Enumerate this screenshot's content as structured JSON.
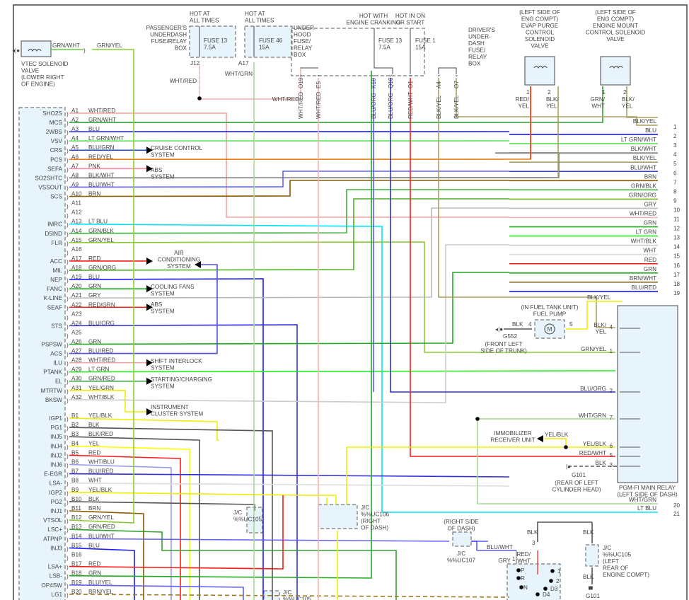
{
  "ecm": {
    "pins_a": [
      {
        "pin": "A1",
        "signal": "SHO2S",
        "wire": "WHT/RED",
        "color": "#f4a0a0"
      },
      {
        "pin": "A2",
        "signal": "MCS",
        "wire": "GRN/WHT",
        "color": "#33a033"
      },
      {
        "pin": "A3",
        "signal": "2WBS",
        "wire": "BLU",
        "color": "#1a1aff"
      },
      {
        "pin": "A4",
        "signal": "VSV",
        "wire": "LT GRN/WHT",
        "color": "#55e055"
      },
      {
        "pin": "A5",
        "signal": "CRS",
        "wire": "BLU/GRN",
        "color": "#2040e0"
      },
      {
        "pin": "A6",
        "signal": "PCS",
        "wire": "RED/YEL",
        "color": "#f07a10"
      },
      {
        "pin": "A7",
        "signal": "SEFA",
        "wire": "PNK",
        "color": "#ff8aa8"
      },
      {
        "pin": "A8",
        "signal": "SO2SHTC",
        "wire": "BLK/WHT",
        "color": "#777777"
      },
      {
        "pin": "A9",
        "signal": "VSSOUT",
        "wire": "BLU/WHT",
        "color": "#6060ff"
      },
      {
        "pin": "A10",
        "signal": "SCS",
        "wire": "BRN",
        "color": "#8a5a00"
      },
      {
        "pin": "A11",
        "signal": "",
        "wire": "",
        "color": ""
      },
      {
        "pin": "A12",
        "signal": "",
        "wire": "",
        "color": ""
      },
      {
        "pin": "A13",
        "signal": "IMRC",
        "wire": "LT BLU",
        "color": "#00e5ff"
      },
      {
        "pin": "A14",
        "signal": "D5IND",
        "wire": "GRN/BLK",
        "color": "#40b040"
      },
      {
        "pin": "A15",
        "signal": "FLR",
        "wire": "GRN/YEL",
        "color": "#88cc33"
      },
      {
        "pin": "A16",
        "signal": "",
        "wire": "",
        "color": ""
      },
      {
        "pin": "A17",
        "signal": "ACC",
        "wire": "RED",
        "color": "#ff1a1a"
      },
      {
        "pin": "A18",
        "signal": "MIL",
        "wire": "GRN/ORG",
        "color": "#4caf20"
      },
      {
        "pin": "A19",
        "signal": "NEP",
        "wire": "BLU",
        "color": "#1a1aff"
      },
      {
        "pin": "A20",
        "signal": "FANC",
        "wire": "GRN",
        "color": "#22aa22"
      },
      {
        "pin": "A21",
        "signal": "K-LINE",
        "wire": "GRY",
        "color": "#bbbbbb"
      },
      {
        "pin": "A22",
        "signal": "SEAF",
        "wire": "RED/GRN",
        "color": "#ff2020"
      },
      {
        "pin": "A23",
        "signal": "",
        "wire": "",
        "color": ""
      },
      {
        "pin": "A24",
        "signal": "STS",
        "wire": "BLU/ORG",
        "color": "#3030e0"
      },
      {
        "pin": "A25",
        "signal": "",
        "wire": "",
        "color": ""
      },
      {
        "pin": "A26",
        "signal": "PSPSW",
        "wire": "GRN",
        "color": "#22aa22"
      },
      {
        "pin": "A27",
        "signal": "ACS",
        "wire": "BLU/RED",
        "color": "#5050e0"
      },
      {
        "pin": "A28",
        "signal": "ILU",
        "wire": "WHT/RED",
        "color": "#f4a0a0"
      },
      {
        "pin": "A29",
        "signal": "PTANK",
        "wire": "LT GRN",
        "color": "#22ee22"
      },
      {
        "pin": "A30",
        "signal": "EL",
        "wire": "GRN/RED",
        "color": "#33a033"
      },
      {
        "pin": "A31",
        "signal": "MTRTW",
        "wire": "YEL/GRN",
        "color": "#eeee00"
      },
      {
        "pin": "A32",
        "signal": "BKSW",
        "wire": "WHT/BLK",
        "color": "#cccccc"
      }
    ],
    "pins_b": [
      {
        "pin": "B1",
        "signal": "IGP1",
        "wire": "YEL/BLK",
        "color": "#f0ee00"
      },
      {
        "pin": "B2",
        "signal": "PG1",
        "wire": "BLK",
        "color": "#555555"
      },
      {
        "pin": "B3",
        "signal": "INJ5",
        "wire": "BLK/RED",
        "color": "#555555"
      },
      {
        "pin": "B4",
        "signal": "INJ4",
        "wire": "YEL",
        "color": "#ffff00"
      },
      {
        "pin": "B5",
        "signal": "INJ2",
        "wire": "RED",
        "color": "#ff1a1a"
      },
      {
        "pin": "B6",
        "signal": "INJ6",
        "wire": "WHT/BLU",
        "color": "#9a9aee"
      },
      {
        "pin": "B7",
        "signal": "E-EGR",
        "wire": "BLU/RED",
        "color": "#3030e0"
      },
      {
        "pin": "B8",
        "signal": "LSA-",
        "wire": "WHT",
        "color": "#dddddd"
      },
      {
        "pin": "B9",
        "signal": "IGP2",
        "wire": "YEL/BLK",
        "color": "#f0ee00"
      },
      {
        "pin": "B10",
        "signal": "PG2",
        "wire": "BLK",
        "color": "#555555"
      },
      {
        "pin": "B11",
        "signal": "INJ1",
        "wire": "BRN",
        "color": "#8a5a00"
      },
      {
        "pin": "B12",
        "signal": "VTSOL",
        "wire": "GRN/YEL",
        "color": "#88cc33"
      },
      {
        "pin": "B13",
        "signal": "LSC+",
        "wire": "GRN/RED",
        "color": "#33a033"
      },
      {
        "pin": "B14",
        "signal": "ATPNP",
        "wire": "BLU/WHT",
        "color": "#6060ff"
      },
      {
        "pin": "B15",
        "signal": "INJ3",
        "wire": "BLU",
        "color": "#1a1aff"
      },
      {
        "pin": "B16",
        "signal": "",
        "wire": "",
        "color": ""
      },
      {
        "pin": "B17",
        "signal": "LSA+",
        "wire": "RED",
        "color": "#ff1a1a"
      },
      {
        "pin": "B18",
        "signal": "LSB-",
        "wire": "GRN",
        "color": "#22aa22"
      },
      {
        "pin": "B19",
        "signal": "OP4SW",
        "wire": "BLU/YEL",
        "color": "#6060ff"
      },
      {
        "pin": "B20",
        "signal": "LG1",
        "wire": "BRN/YEL",
        "color": "#a07a20"
      }
    ]
  },
  "system_arrows": [
    "CRUISE CONTROL\nSYSTEM",
    "ABS\nSYSTEM",
    "AIR\nCONDITIONING\nSYSTEM",
    "COOLING FANS\nSYSTEM",
    "ABS\nSYSTEM",
    "SHIFT INTERLOCK\nSYSTEM",
    "STARTING/CHARGING\nSYSTEM",
    "INSTRUMENT\nCLUSTER SYSTEM"
  ],
  "right_wires": [
    {
      "num": "1",
      "wire": "BLK/YEL",
      "color": "#a8a060"
    },
    {
      "num": "2",
      "wire": "BLU",
      "color": "#1a1aff"
    },
    {
      "num": "3",
      "wire": "LT GRN/WHT",
      "color": "#55e055"
    },
    {
      "num": "4",
      "wire": "BLK/WHT",
      "color": "#777777"
    },
    {
      "num": "5",
      "wire": "BLK/YEL",
      "color": "#a8a060"
    },
    {
      "num": "6",
      "wire": "BLU/WHT",
      "color": "#3a3aff"
    },
    {
      "num": "7",
      "wire": "BRN",
      "color": "#8a5a00"
    },
    {
      "num": "8",
      "wire": "GRN/BLK",
      "color": "#40b040"
    },
    {
      "num": "9",
      "wire": "GRN/ORG",
      "color": "#7ab020"
    },
    {
      "num": "10",
      "wire": "GRY",
      "color": "#bbbbbb"
    },
    {
      "num": "11",
      "wire": "WHT/RED",
      "color": "#f4b0b0"
    },
    {
      "num": "12",
      "wire": "GRN",
      "color": "#22aa22"
    },
    {
      "num": "13",
      "wire": "LT GRN",
      "color": "#22ee22"
    },
    {
      "num": "14",
      "wire": "WHT/BLK",
      "color": "#cccccc"
    },
    {
      "num": "15",
      "wire": "WHT",
      "color": "#dddddd"
    },
    {
      "num": "16",
      "wire": "RED",
      "color": "#ff1a1a"
    },
    {
      "num": "17",
      "wire": "GRN",
      "color": "#22aa22"
    },
    {
      "num": "18",
      "wire": "BRN/WHT",
      "color": "#8a6a20"
    },
    {
      "num": "19",
      "wire": "BLU/RED",
      "color": "#1a1aff"
    },
    {
      "num": "20",
      "wire": "WHT/GRN",
      "color": "#a8d890"
    },
    {
      "num": "21",
      "wire": "LT BLU",
      "color": "#00e5ff"
    }
  ],
  "vtec": {
    "label": "VTEC SOLENOID\nVALVE\n(LOWER RIGHT\nOF ENGINE)",
    "wire_in": "GRN/WHT",
    "wire_out": "GRN/YEL"
  },
  "pass_fuse_box": {
    "hot": "HOT AT\nALL TIMES",
    "label": "PASSENGER'S\nUNDERDASH\nFUSE/RELAY\nBOX",
    "fuse": "FUSE 13\n7.5A",
    "terminal": "J12",
    "wire": "WHT/RED"
  },
  "underhood_box": {
    "hot": "HOT AT\nALL TIMES",
    "label": "UNDER-\nHOOD\nFUSE/\nRELAY\nBOX",
    "fuse": "FUSE 46\n15A",
    "terminal": "A17",
    "wire": "WHT/GRN"
  },
  "driver_box": {
    "hot_crank": "HOT WITH\nENGINE CRANKING",
    "hot_on": "HOT IN ON\nOR START",
    "fuse13": "FUSE 13\n7.5A",
    "fuse1": "FUSE 1\n15A",
    "label": "DRIVER'S\nUNDER-\nDASH\nFUSE/\nRELAY\nBOX",
    "terminals": [
      {
        "t": "O19",
        "wire": "WHT/RED"
      },
      {
        "t": "E5",
        "wire": "WHT/RED"
      },
      {
        "t": "K18",
        "wire": "BLU/ORG"
      },
      {
        "t": "Q10",
        "wire": "BLU/ORG"
      },
      {
        "t": "O1",
        "wire": "RED/WHT"
      },
      {
        "t": "A4",
        "wire": "BLK/YEL"
      },
      {
        "t": "O7",
        "wire": "BLK/YEL"
      }
    ]
  },
  "evap": {
    "label": "(LEFT SIDE OF\nENG COMPT)\nEVAP PURGE\nCONTROL\nSOLENOID\nVALVE",
    "pins": [
      "1",
      "2"
    ],
    "wires": [
      "RED/\nYEL",
      "BLK/\nYEL"
    ]
  },
  "mount": {
    "label": "(LEFT SIDE OF\nENG COMPT)\nENGINE MOUNT\nCONTROL SOLENOID\nVALVE",
    "pins": [
      "1",
      "2"
    ],
    "wires": [
      "GRN/\nWHT",
      "BLK/\nYEL"
    ]
  },
  "fuel_pump": {
    "label": "(IN FUEL TANK UNIT)\nFUEL PUMP",
    "ground": "G552",
    "ground_loc": "(FRONT LEFT\nSIDE OF TRUNK)",
    "wire_gnd": "BLK",
    "pin_gnd": "4",
    "pin_pwr": "5",
    "wire_pwr": "BLK/YEL",
    "motor": "M"
  },
  "main_relay": {
    "label": "PGM-FI MAIN RELAY\n(LEFT SIDE OF DASH)",
    "pins": [
      {
        "pin": "4",
        "wire": "BLK/\nYEL"
      },
      {
        "pin": "1",
        "wire": "GRN/YEL"
      },
      {
        "pin": "2",
        "wire": "BLU/ORG"
      },
      {
        "pin": "7",
        "wire": "WHT/GRN"
      },
      {
        "pin": "6",
        "wire": "YEL/BLK"
      },
      {
        "pin": "5",
        "wire": "RED/WHT"
      },
      {
        "pin": "3",
        "wire": "BLK"
      }
    ]
  },
  "immobilizer": {
    "label": "IMMOBILIZER\nRECEIVER UNIT",
    "wire": "YEL/BLK"
  },
  "g101": {
    "label": "G101",
    "loc": "(REAR OF LEFT\n\nCYLINDER HEAD)"
  },
  "jc_105a": {
    "label": "J/C\n%%UC105"
  },
  "jc_106": {
    "label": "J/C\n%%UC106\n(RIGHT\nOF DASH)"
  },
  "jc_107": {
    "loc": "(RIGHT SIDE\nOF DASH)",
    "label": "J/C\n%%UC107",
    "wire": "BLU/WHT"
  },
  "jc_105b": {
    "label": "J/C\n%%UC105"
  },
  "jc_105c": {
    "label": "J/C\n%%UC105\n(LEFT\nREAR OF\nENGINE COMPT)",
    "wire_top": "BLK",
    "wire_bot": "BLK",
    "ground": "G101"
  },
  "range_switch": {
    "pin1": "1",
    "wire1": "GRY",
    "pin3": "3",
    "wire3": "RED/\nWHT",
    "wire_top": "BLK",
    "positions": [
      "P",
      "R",
      "N",
      "1",
      "2",
      "D3",
      "D4"
    ]
  }
}
